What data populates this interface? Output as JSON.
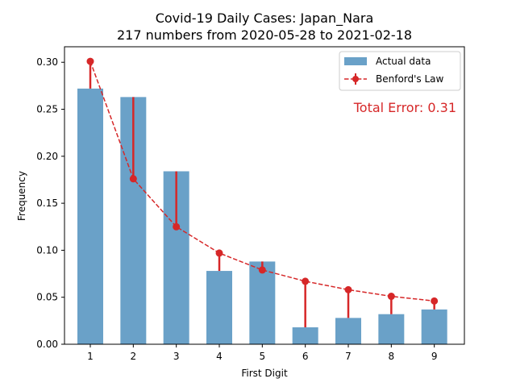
{
  "chart_data": {
    "type": "bar",
    "title": "Covid-19 Daily Cases: Japan_Nara",
    "subtitle": "217 numbers from 2020-05-28 to 2021-02-18",
    "xlabel": "First Digit",
    "ylabel": "Frequency",
    "categories": [
      "1",
      "2",
      "3",
      "4",
      "5",
      "6",
      "7",
      "8",
      "9"
    ],
    "x": [
      1,
      2,
      3,
      4,
      5,
      6,
      7,
      8,
      9
    ],
    "xlim": [
      0.4,
      9.7
    ],
    "ylim": [
      0,
      0.3165
    ],
    "yticks": [
      0.0,
      0.05,
      0.1,
      0.15,
      0.2,
      0.25,
      0.3
    ],
    "ytick_labels": [
      "0.00",
      "0.05",
      "0.10",
      "0.15",
      "0.20",
      "0.25",
      "0.30"
    ],
    "grid": false,
    "legend_position": "top-right",
    "series": [
      {
        "name": "Actual data",
        "type": "bar",
        "color": "#6aa1c8",
        "values": [
          0.272,
          0.263,
          0.184,
          0.078,
          0.088,
          0.018,
          0.028,
          0.032,
          0.037
        ]
      },
      {
        "name": "Benford's Law",
        "type": "line",
        "color": "#d62728",
        "values": [
          0.301,
          0.176,
          0.125,
          0.097,
          0.079,
          0.067,
          0.058,
          0.051,
          0.046
        ]
      }
    ],
    "annotation": {
      "text": "Total Error: 0.31",
      "color": "#d62728"
    }
  }
}
